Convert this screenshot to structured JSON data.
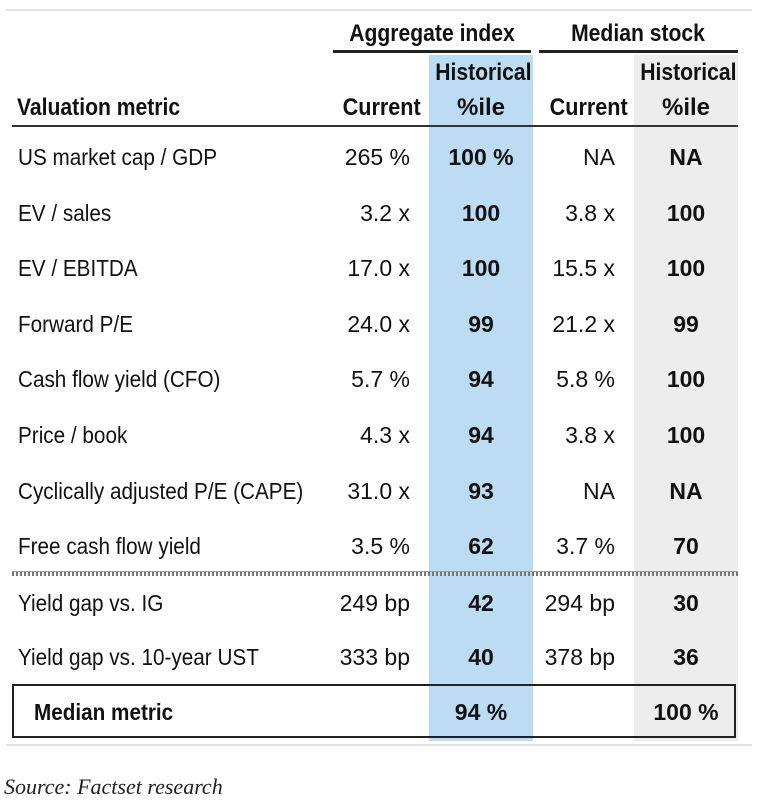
{
  "table": {
    "group_headers": {
      "aggregate": "Aggregate index",
      "median_stock": "Median stock"
    },
    "column_headers": {
      "metric": "Valuation metric",
      "agg_current": "Current",
      "agg_pct_line1": "Historical",
      "agg_pct_line2": "%ile",
      "med_current": "Current",
      "med_pct_line1": "Historical",
      "med_pct_line2": "%ile"
    },
    "rows": [
      {
        "metric": "US market cap / GDP",
        "agg_current": "265 %",
        "agg_pct": "100 %",
        "med_current": "NA",
        "med_pct": "NA"
      },
      {
        "metric": "EV / sales",
        "agg_current": "3.2 x",
        "agg_pct": "100",
        "med_current": "3.8 x",
        "med_pct": "100"
      },
      {
        "metric": "EV / EBITDA",
        "agg_current": "17.0 x",
        "agg_pct": "100",
        "med_current": "15.5 x",
        "med_pct": "100"
      },
      {
        "metric": "Forward P/E",
        "agg_current": "24.0 x",
        "agg_pct": "99",
        "med_current": "21.2 x",
        "med_pct": "99"
      },
      {
        "metric": "Cash flow yield (CFO)",
        "agg_current": "5.7 %",
        "agg_pct": "94",
        "med_current": "5.8 %",
        "med_pct": "100"
      },
      {
        "metric": "Price / book",
        "agg_current": "4.3 x",
        "agg_pct": "94",
        "med_current": "3.8 x",
        "med_pct": "100"
      },
      {
        "metric": "Cyclically adjusted P/E (CAPE)",
        "agg_current": "31.0 x",
        "agg_pct": "93",
        "med_current": "NA",
        "med_pct": "NA"
      },
      {
        "metric": "Free cash flow yield",
        "agg_current": "3.5 %",
        "agg_pct": "62",
        "med_current": "3.7 %",
        "med_pct": "70"
      }
    ],
    "yield_rows": [
      {
        "metric": "Yield gap vs. IG",
        "agg_current": "249 bp",
        "agg_pct": "42",
        "med_current": "294 bp",
        "med_pct": "30"
      },
      {
        "metric": "Yield gap vs. 10-year UST",
        "agg_current": "333 bp",
        "agg_pct": "40",
        "med_current": "378 bp",
        "med_pct": "36"
      }
    ],
    "median_row": {
      "metric": "Median metric",
      "agg_pct": "94 %",
      "med_pct": "100 %"
    }
  },
  "source": "Source: Factset research"
}
